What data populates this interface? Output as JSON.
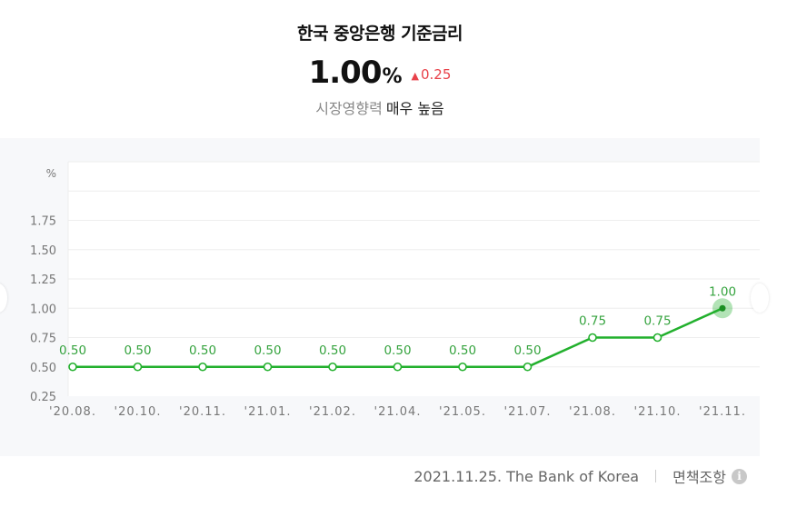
{
  "header": {
    "title": "한국 중앙은행 기준금리",
    "value": "1.00",
    "unit": "%",
    "change": "0.25",
    "impact_label": "시장영향력",
    "impact_level": "매우 높음"
  },
  "footer": {
    "source": "2021.11.25. The Bank of Korea",
    "disclaimer": "면책조항",
    "info_icon": "info-icon"
  },
  "colors": {
    "line": "#22b02d",
    "label": "#35a33e",
    "change_up": "#e8424a"
  },
  "chart_data": {
    "type": "line",
    "ylabel": "%",
    "yticks": [
      "0.25",
      "0.50",
      "0.75",
      "1.00",
      "1.25",
      "1.50",
      "1.75"
    ],
    "ylim": [
      0.25,
      2.25
    ],
    "grid": true,
    "categories": [
      "'20.08.",
      "'20.10.",
      "'20.11.",
      "'21.01.",
      "'21.02.",
      "'21.04.",
      "'21.05.",
      "'21.07.",
      "'21.08.",
      "'21.10.",
      "'21.11."
    ],
    "series": [
      {
        "values": [
          0.5,
          0.5,
          0.5,
          0.5,
          0.5,
          0.5,
          0.5,
          0.5,
          0.75,
          0.75,
          1.0
        ],
        "labels": [
          "0.50",
          "0.50",
          "0.50",
          "0.50",
          "0.50",
          "0.50",
          "0.50",
          "0.50",
          "0.75",
          "0.75",
          "1.00"
        ]
      }
    ],
    "highlight_last": true
  }
}
